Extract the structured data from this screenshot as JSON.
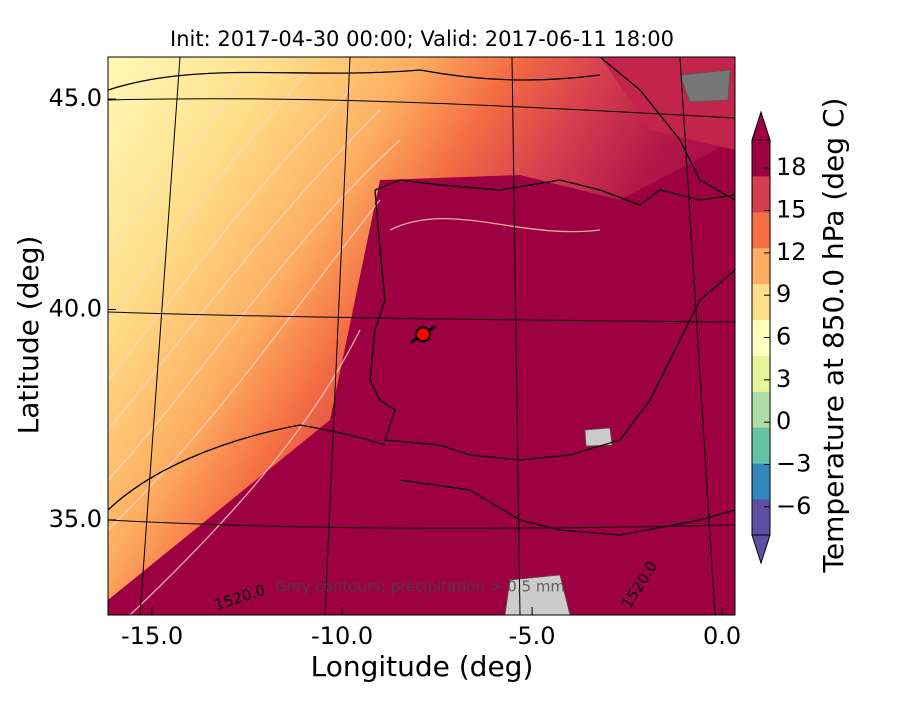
{
  "chart_data": {
    "type": "map",
    "title": "Init: 2017-04-30 00:00; Valid: 2017-06-11 18:00",
    "x_label": "Longitude (deg)",
    "y_label": "Latitude (deg)",
    "xlim": [
      -16.16,
      0.34
    ],
    "ylim": [
      32.74,
      46.0
    ],
    "xticks": [
      {
        "value": -15,
        "label": "-15.0"
      },
      {
        "value": -10,
        "label": "-10.0"
      },
      {
        "value": -5,
        "label": "-5.0"
      },
      {
        "value": 0,
        "label": "0.0"
      }
    ],
    "yticks": [
      {
        "value": 35,
        "label": "35.0"
      },
      {
        "value": 40,
        "label": "40.0"
      },
      {
        "value": 45,
        "label": "45.0"
      }
    ],
    "marker_x": [
      -7.87
    ],
    "marker_y": [
      39.41
    ],
    "marker_color": "#ff0000",
    "annotations": [
      "Grey contours: precipitation > 0.5 mm",
      "1520.0",
      "1520.0"
    ],
    "colorbar": {
      "label": "Temperature at 850.0 hPa (deg C)",
      "lim": [
        -8,
        20
      ],
      "ticks": [
        {
          "value": -6,
          "label": "−6"
        },
        {
          "value": -3,
          "label": "−3"
        },
        0,
        3,
        6,
        9,
        12,
        15,
        18
      ],
      "colors": [
        "#5e4fa2",
        "#3288bd",
        "#66c2a5",
        "#abdda4",
        "#e6f598",
        "#ffffbf",
        "#fee08b",
        "#fdae61",
        "#f46d43",
        "#d53e4f",
        "#9e0142"
      ]
    }
  }
}
